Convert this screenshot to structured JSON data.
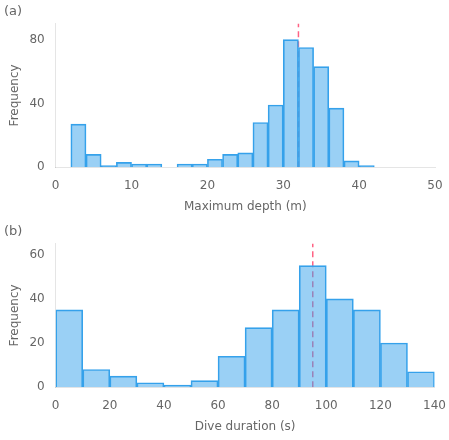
{
  "chart_data": [
    {
      "type": "histogram",
      "title": "(a)",
      "bins": [
        0,
        2,
        4,
        6,
        8,
        10,
        12,
        14,
        16,
        18,
        20,
        22,
        24,
        26,
        28,
        30,
        32,
        34,
        36,
        38,
        40,
        42,
        44,
        46,
        48,
        50
      ],
      "values": [
        0,
        27,
        8,
        1,
        3,
        2,
        2,
        0,
        2,
        2,
        5,
        8,
        9,
        28,
        39,
        80,
        75,
        63,
        37,
        4,
        1,
        0,
        0,
        0,
        0
      ],
      "median": 32,
      "line_style": "dashed",
      "xlabel": "Maximum depth (m)",
      "ylabel": "Frequency",
      "xlim": [
        0,
        50
      ],
      "ylim": [
        0,
        90
      ],
      "xticks": [
        0,
        10,
        20,
        30,
        40,
        50
      ],
      "yticks": [
        0,
        40,
        80
      ],
      "grid": false
    },
    {
      "type": "histogram",
      "title": "(b)",
      "bins": [
        0,
        10,
        20,
        30,
        40,
        50,
        60,
        70,
        80,
        90,
        100,
        110,
        120,
        130,
        140
      ],
      "values": [
        35,
        8,
        5,
        2,
        1,
        3,
        14,
        27,
        35,
        55,
        40,
        35,
        20,
        7
      ],
      "median": 95,
      "line_style": "dashed",
      "xlabel": "Dive duration (s)",
      "ylabel": "Frequency",
      "xlim": [
        0,
        140
      ],
      "ylim": [
        0,
        65
      ],
      "xticks": [
        0,
        20,
        40,
        60,
        80,
        100,
        120,
        140
      ],
      "yticks": [
        0,
        20,
        40,
        60
      ],
      "grid": false
    }
  ]
}
